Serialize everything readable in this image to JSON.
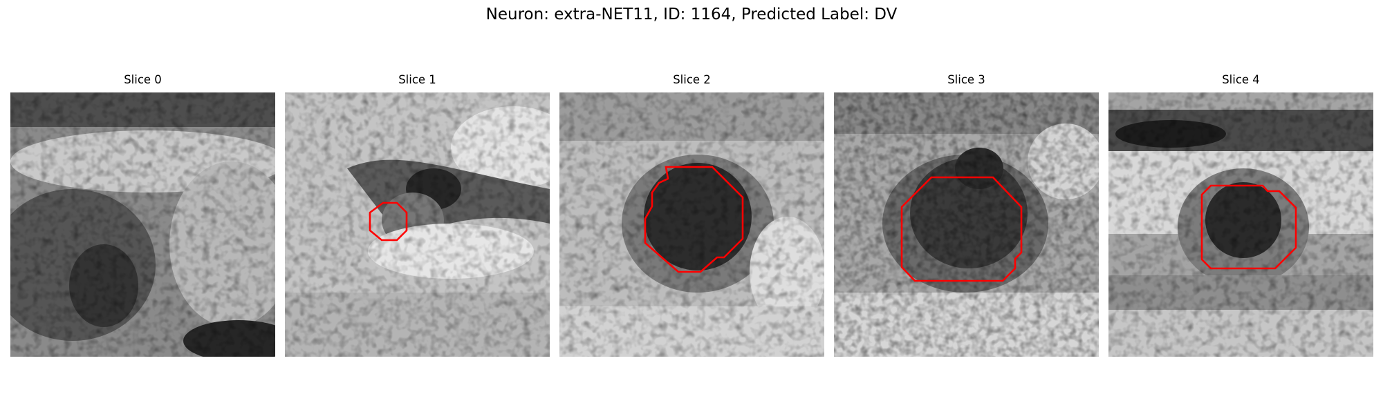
{
  "figure": {
    "title": "Neuron: extra-NET11, ID: 1164, Predicted Label: DV"
  },
  "colors": {
    "contour": "#ff0000",
    "background": "#ffffff"
  },
  "panels": [
    {
      "title": "Slice 0",
      "has_contour": false
    },
    {
      "title": "Slice 1",
      "has_contour": true
    },
    {
      "title": "Slice 2",
      "has_contour": true
    },
    {
      "title": "Slice 3",
      "has_contour": true
    },
    {
      "title": "Slice 4",
      "has_contour": true
    }
  ]
}
